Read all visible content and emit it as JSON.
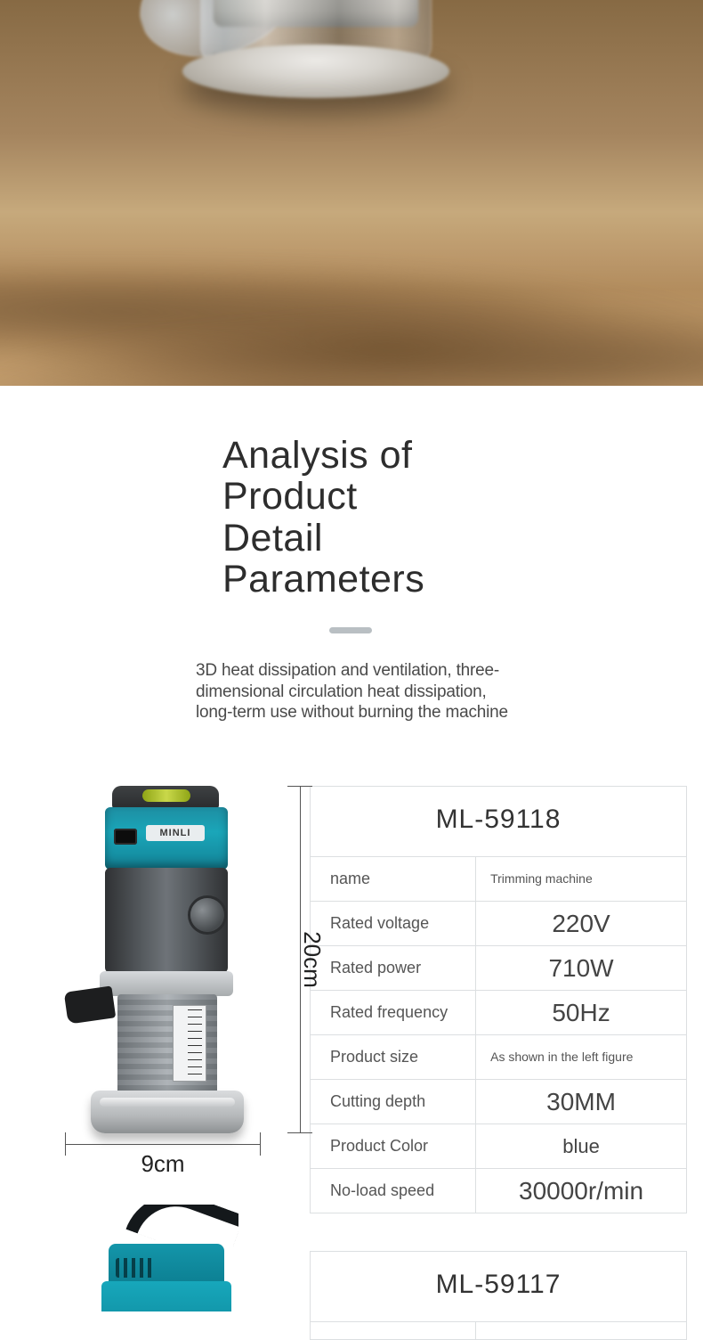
{
  "heading": {
    "title_l1": "Analysis of",
    "title_l2": "Product",
    "title_l3": "Detail",
    "title_l4": "Parameters",
    "subdesc": "3D heat dissipation and ventilation, three-dimensional circulation heat dissipation, long-term use without burning the machine"
  },
  "diagram": {
    "brand_label": "MINLI",
    "height_dim": "20cm",
    "width_dim": "9cm"
  },
  "spec1": {
    "model": "ML-59118",
    "rows": [
      {
        "k": "name",
        "v": "Trimming machine",
        "vclass": "small"
      },
      {
        "k": "Rated voltage",
        "v": "220V",
        "vclass": ""
      },
      {
        "k": "Rated power",
        "v": "710W",
        "vclass": ""
      },
      {
        "k": "Rated frequency",
        "v": "50Hz",
        "vclass": ""
      },
      {
        "k": "Product size",
        "v": "As shown in the left figure",
        "vclass": "small"
      },
      {
        "k": "Cutting depth",
        "v": "30MM",
        "vclass": ""
      },
      {
        "k": "Product Color",
        "v": "blue",
        "vclass": "med"
      },
      {
        "k": "No-load speed",
        "v": "30000r/min",
        "vclass": ""
      }
    ]
  },
  "spec2": {
    "model": "ML-59117"
  },
  "colors": {
    "divider": "#b9bfc3",
    "table_border": "#dcdfe1",
    "brand_teal": "#17a7bb"
  }
}
